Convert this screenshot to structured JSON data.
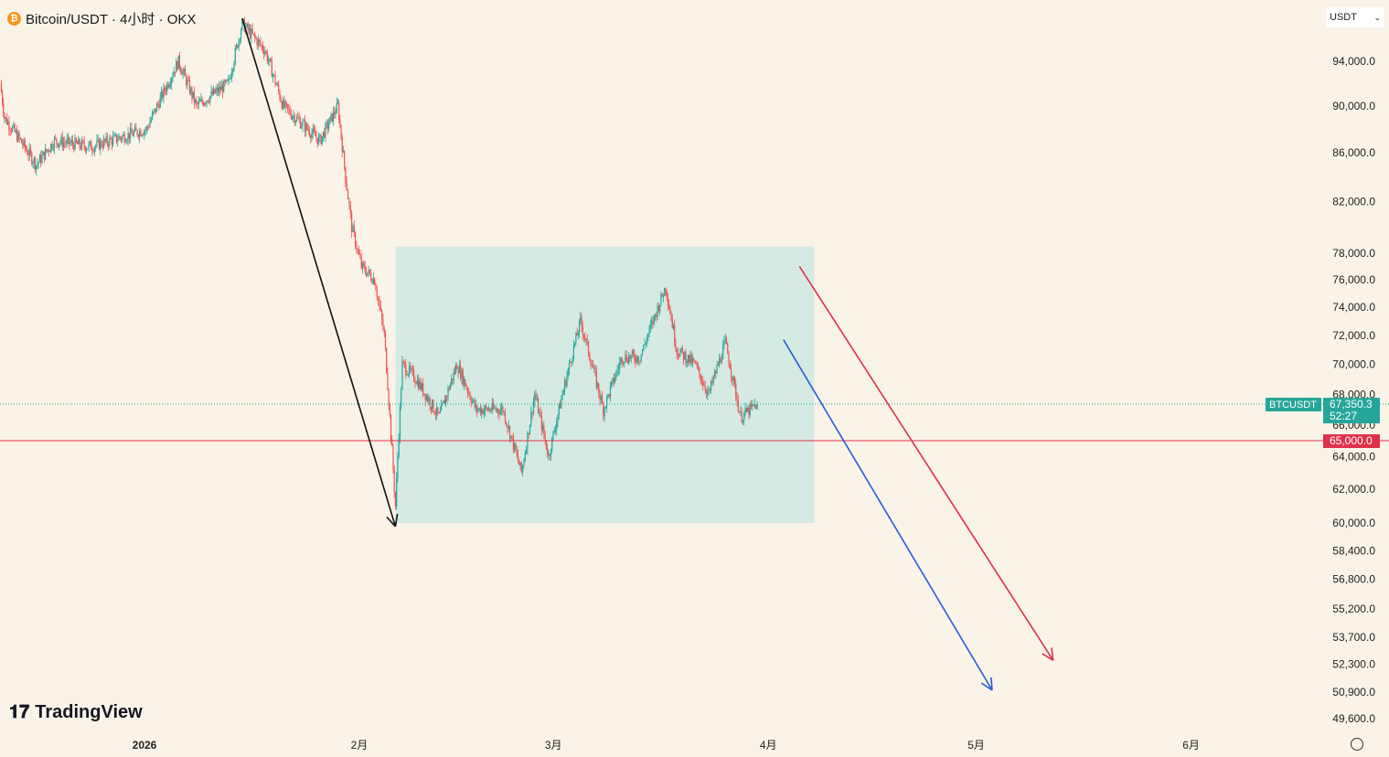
{
  "header": {
    "title": "Bitcoin/USDT · 4小时 · OKX",
    "currency": "USDT"
  },
  "logo": "TradingView",
  "badges": {
    "symbol": "BTCUSDT",
    "last_price": "67,350.3",
    "countdown": "52:27",
    "level": "65,000.0"
  },
  "colors": {
    "up": "#26a69a",
    "down": "#ef5350",
    "box": "#d4eae2",
    "level": "#e0314b",
    "blue": "#2a5bd7",
    "black": "#111111"
  },
  "chart_data": {
    "type": "candlestick",
    "title": "Bitcoin/USDT · 4小时 · OKX",
    "y_ticks": [
      "94,000.0",
      "90,000.0",
      "86,000.0",
      "82,000.0",
      "78,000.0",
      "76,000.0",
      "74,000.0",
      "72,000.0",
      "70,000.0",
      "68,000.0",
      "66,000.0",
      "64,000.0",
      "62,000.0",
      "60,000.0",
      "58,400.0",
      "56,800.0",
      "55,200.0",
      "53,700.0",
      "52,300.0",
      "50,900.0",
      "49,600.0"
    ],
    "y_values": [
      94000,
      90000,
      86000,
      82000,
      78000,
      76000,
      74000,
      72000,
      70000,
      68000,
      66000,
      64000,
      62000,
      60000,
      58400,
      56800,
      55200,
      53700,
      52300,
      50900,
      49600
    ],
    "x_ticks": [
      "2026",
      "2月",
      "3月",
      "4月",
      "5月",
      "6月"
    ],
    "x_tick_days": [
      0,
      31,
      59,
      90,
      120,
      151
    ],
    "price_path_day_close": [
      [
        -20.8,
        92000
      ],
      [
        -20.2,
        89000
      ],
      [
        -15.6,
        85000
      ],
      [
        -13,
        87000
      ],
      [
        -7.7,
        86500
      ],
      [
        0.3,
        88000
      ],
      [
        4.9,
        94000
      ],
      [
        7.5,
        90000
      ],
      [
        12.1,
        92000
      ],
      [
        14.1,
        97500
      ],
      [
        17.4,
        95000
      ],
      [
        20,
        90000
      ],
      [
        25.3,
        87000
      ],
      [
        27.9,
        90000
      ],
      [
        29,
        84000
      ],
      [
        29.9,
        80000
      ],
      [
        31.3,
        77000
      ],
      [
        33.2,
        76000
      ],
      [
        34.6,
        72000
      ],
      [
        36.2,
        61000
      ],
      [
        37.2,
        70000
      ],
      [
        39.2,
        69000
      ],
      [
        42.5,
        66500
      ],
      [
        45.1,
        70000
      ],
      [
        47.8,
        67000
      ],
      [
        51.7,
        67000
      ],
      [
        54.4,
        63000
      ],
      [
        56.3,
        68000
      ],
      [
        58.3,
        64000
      ],
      [
        60.3,
        68000
      ],
      [
        62.9,
        73000
      ],
      [
        66.2,
        67000
      ],
      [
        68.9,
        70500
      ],
      [
        71.5,
        70500
      ],
      [
        75.2,
        75500
      ],
      [
        76.8,
        71000
      ],
      [
        79.4,
        70000
      ],
      [
        81.4,
        68000
      ],
      [
        83.8,
        71500
      ],
      [
        86,
        66500
      ],
      [
        88.4,
        67350
      ]
    ],
    "last_price": 67350.3,
    "horizontal_level": 65000,
    "range_box": {
      "day_from": 36.2,
      "day_to": 96.6,
      "price_from": 60000,
      "price_to": 78500
    },
    "arrows": [
      {
        "color": "black",
        "from": [
          14.1,
          98000
        ],
        "to": [
          36.2,
          59800
        ]
      },
      {
        "color": "blue",
        "from": [
          92.2,
          71700
        ],
        "to": [
          122.3,
          51000
        ]
      },
      {
        "color": "red",
        "from": [
          94.5,
          77000
        ],
        "to": [
          131.1,
          52500
        ]
      }
    ]
  }
}
